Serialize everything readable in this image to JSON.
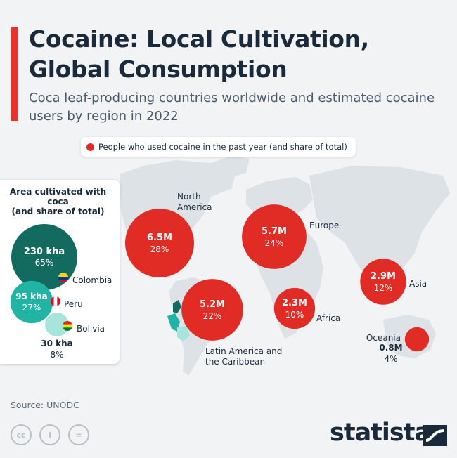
{
  "header": {
    "title": "Cocaine: Local Cultivation, Global Consumption",
    "subtitle": "Coca leaf-producing countries worldwide and estimated cocaine users by region in 2022"
  },
  "legend": {
    "label": "People who used cocaine in the past year (and share of total)"
  },
  "colors": {
    "accent": "#e8332a",
    "users_bubble": "#e12b25",
    "colombia": "#136a5e",
    "peru": "#21b3a3",
    "bolivia": "#a7e4db",
    "map_land": "#dde2e7",
    "text_dark": "#1b2a3a"
  },
  "chart_data": [
    {
      "type": "bubble",
      "title": "People who used cocaine in the past year (and share of total)",
      "unit": "users",
      "series": [
        {
          "region": "North America",
          "value": 6.5,
          "value_label": "6.5M",
          "share": 28,
          "share_label": "28%"
        },
        {
          "region": "Europe",
          "value": 5.7,
          "value_label": "5.7M",
          "share": 24,
          "share_label": "24%"
        },
        {
          "region": "Latin America and the Caribbean",
          "value": 5.2,
          "value_label": "5.2M",
          "share": 22,
          "share_label": "22%"
        },
        {
          "region": "Asia",
          "value": 2.9,
          "value_label": "2.9M",
          "share": 12,
          "share_label": "12%"
        },
        {
          "region": "Africa",
          "value": 2.3,
          "value_label": "2.3M",
          "share": 10,
          "share_label": "10%"
        },
        {
          "region": "Oceania",
          "value": 0.8,
          "value_label": "0.8M",
          "share": 4,
          "share_label": "4%"
        }
      ]
    },
    {
      "type": "bubble",
      "title": "Area cultivated with coca\n(and share of total)",
      "unit": "kha",
      "series": [
        {
          "country": "Colombia",
          "value": 230,
          "value_label": "230 kha",
          "share": 65,
          "share_label": "65%",
          "flag": "colombia-flag-icon"
        },
        {
          "country": "Peru",
          "value": 95,
          "value_label": "95 kha",
          "share": 27,
          "share_label": "27%",
          "flag": "peru-flag-icon"
        },
        {
          "country": "Bolivia",
          "value": 30,
          "value_label": "30 kha",
          "share": 8,
          "share_label": "8%",
          "flag": "bolivia-flag-icon"
        }
      ]
    }
  ],
  "footer": {
    "source": "Source: UNODC",
    "license_icons": [
      "creative-commons-icon",
      "attribution-icon",
      "no-derivatives-icon"
    ],
    "license_glyphs": [
      "cc",
      "i",
      "="
    ],
    "brand": "statista"
  }
}
